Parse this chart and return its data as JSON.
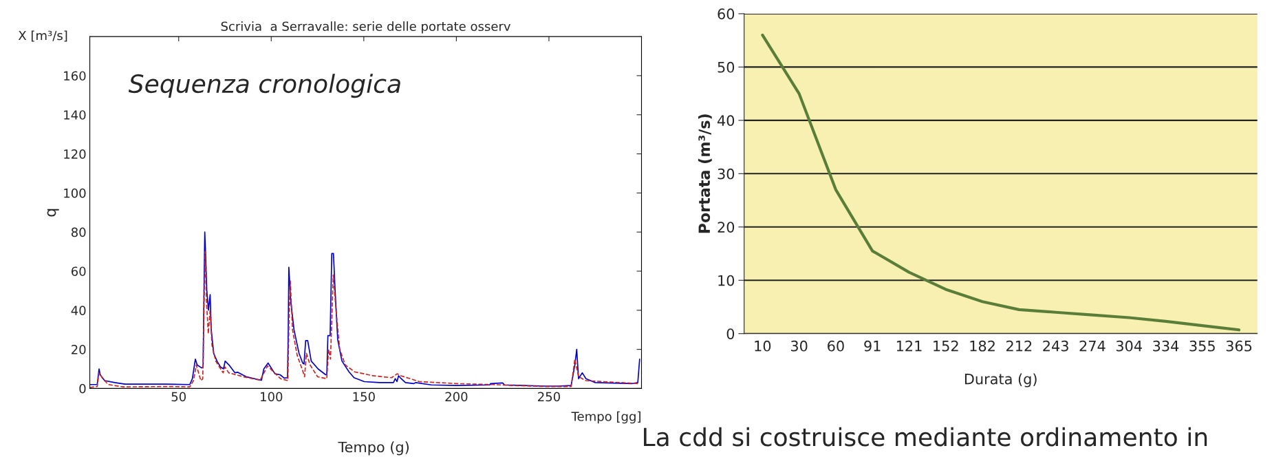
{
  "chart_data": [
    {
      "type": "line",
      "title": "Scrivia  a Serravalle: serie delle portate osserv",
      "xlabel": "Tempo [gg]",
      "ylabel": "q",
      "annotations": [
        "Sequenza cronologica",
        "X [m³/s]",
        "Tempo (g)"
      ],
      "xlim": [
        2,
        300
      ],
      "ylim": [
        0,
        180
      ],
      "xticks": [
        50,
        100,
        150,
        200,
        250
      ],
      "yticks": [
        0,
        20,
        40,
        60,
        80,
        100,
        120,
        140,
        160
      ],
      "grid": false,
      "legend": false,
      "series": [
        {
          "color": "#0000cc",
          "line_style": "solid",
          "x": [
            2,
            6,
            7,
            7.6,
            10,
            15.5,
            21,
            43,
            56,
            57.4,
            59,
            60,
            62.4,
            63.2,
            63.6,
            64.1,
            64.5,
            65.2,
            66.1,
            67,
            67.6,
            68.9,
            70.7,
            72.6,
            74.2,
            75.1,
            77.2,
            80.4,
            81.8,
            86.4,
            91,
            94.7,
            96,
            98.3,
            102,
            104.8,
            107,
            108.8,
            109.2,
            109.5,
            110.5,
            112.3,
            115,
            117,
            117.7,
            118.6,
            119.7,
            121.6,
            125.3,
            129.4,
            130,
            130.6,
            131.8,
            132.7,
            133.6,
            134.5,
            135.9,
            138.2,
            142,
            144.7,
            150.3,
            158.6,
            166,
            167,
            167.9,
            168.8,
            169.7,
            172.5,
            177,
            178,
            186.4,
            200,
            218,
            218.5,
            225,
            226,
            248,
            255,
            262,
            264,
            265,
            266,
            268,
            270,
            275,
            295,
            298,
            299
          ],
          "values": [
            2,
            2,
            10,
            7,
            4,
            3,
            2.2,
            2.2,
            2,
            5,
            15,
            12,
            10.5,
            11,
            45,
            80,
            70,
            50,
            40,
            48,
            30,
            18,
            14,
            11,
            10,
            14,
            12,
            8,
            8.3,
            6,
            5,
            4.2,
            10,
            13,
            7.5,
            7,
            5.3,
            5.5,
            30,
            62,
            45,
            30,
            18,
            13,
            12.5,
            24.5,
            24.5,
            14,
            10,
            7,
            7,
            27,
            27,
            69,
            69,
            50,
            25,
            14,
            8.5,
            5.5,
            3.5,
            3,
            3,
            5,
            3.5,
            6.5,
            5.5,
            3,
            2.5,
            3,
            1.8,
            1.5,
            1.8,
            2.5,
            2.8,
            1.8,
            1.2,
            1.2,
            1.5,
            12,
            20,
            5,
            8,
            5,
            3,
            2.5,
            3,
            15
          ]
        },
        {
          "color": "#cc2222",
          "line_style": "dashed",
          "x": [
            2,
            6,
            7,
            9,
            12,
            20,
            45,
            56,
            58,
            59.5,
            62,
            63,
            63.7,
            64.3,
            65,
            66,
            67,
            68,
            70,
            74,
            75,
            77,
            85,
            94,
            98,
            105,
            109,
            109.6,
            110.3,
            111.5,
            114,
            117,
            118,
            119,
            121,
            125,
            130,
            131,
            132,
            133.5,
            135,
            137,
            140,
            145,
            155,
            165,
            168,
            170,
            180,
            200,
            218,
            220,
            230,
            248,
            262,
            264,
            266,
            270,
            298
          ],
          "values": [
            0.5,
            1,
            8,
            5,
            2,
            0.8,
            1,
            0.8,
            4,
            12,
            4,
            5,
            40,
            70,
            45,
            28,
            40,
            22,
            14,
            8,
            11,
            8,
            6,
            4.2,
            11.5,
            5,
            4,
            35,
            55,
            30,
            17,
            9,
            6,
            18,
            12,
            6,
            5,
            20,
            15,
            58,
            40,
            20,
            12,
            8.5,
            6.5,
            5.5,
            7.5,
            6.5,
            3.5,
            2.5,
            2,
            2,
            1.5,
            1,
            1,
            15,
            6,
            4,
            2.5
          ]
        }
      ]
    },
    {
      "type": "line",
      "xlabel": "Durata (g)",
      "ylabel": "Portata (m³/s)",
      "annotations": [
        "La cdd si costruisce mediante ordinamento in"
      ],
      "categories": [
        "10",
        "30",
        "60",
        "91",
        "121",
        "152",
        "182",
        "212",
        "243",
        "274",
        "304",
        "334",
        "355",
        "365"
      ],
      "ylim": [
        0,
        60
      ],
      "yticks": [
        0,
        10,
        20,
        30,
        40,
        50,
        60
      ],
      "grid": "y",
      "legend": false,
      "series": [
        {
          "color": "#5a7d3a",
          "line_style": "solid",
          "values": [
            56,
            45,
            27,
            15.5,
            11.5,
            8.3,
            6,
            4.5,
            4,
            3.5,
            3,
            2.3,
            1.5,
            0.7
          ]
        }
      ]
    }
  ]
}
